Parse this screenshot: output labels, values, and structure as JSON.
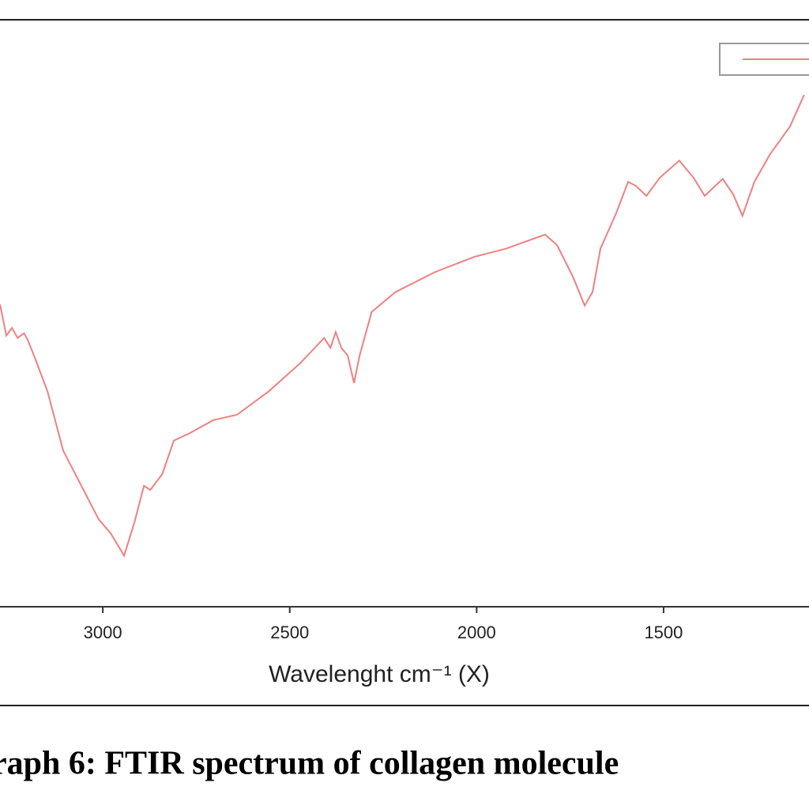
{
  "chart_data": {
    "type": "line",
    "caption": "raph 6: FTIR spectrum of collagen molecule",
    "x_label": "Wavelenght cm⁻¹ (X)",
    "xlim": [
      3275,
      1111
    ],
    "xticks": [
      3000,
      2500,
      2000,
      1500
    ],
    "ylim": [
      0,
      100
    ],
    "legend": "top-right",
    "series": [
      {
        "color": "#f08080",
        "x": [
          3275,
          3258,
          3243,
          3228,
          3211,
          3201,
          3180,
          3148,
          3106,
          3063,
          3011,
          2979,
          2943,
          2915,
          2890,
          2873,
          2841,
          2810,
          2767,
          2704,
          2641,
          2556,
          2472,
          2408,
          2391,
          2377,
          2362,
          2345,
          2328,
          2313,
          2281,
          2218,
          2112,
          2007,
          1922,
          1817,
          1785,
          1743,
          1711,
          1690,
          1669,
          1627,
          1595,
          1574,
          1546,
          1510,
          1458,
          1420,
          1390,
          1342,
          1314,
          1289,
          1257,
          1215,
          1162,
          1124
        ],
        "values": [
          51.5,
          46.2,
          47.5,
          45.8,
          46.6,
          45.5,
          42.1,
          36.7,
          26.6,
          21.3,
          14.9,
          12.5,
          8.7,
          14.5,
          20.6,
          19.9,
          22.6,
          28.3,
          29.6,
          31.8,
          32.7,
          36.7,
          41.5,
          45.8,
          44.1,
          46.8,
          44.1,
          42.8,
          38.1,
          42.8,
          50.2,
          53.6,
          57.0,
          59.6,
          61.0,
          63.4,
          61.6,
          56.3,
          51.3,
          53.6,
          61.0,
          67.0,
          72.4,
          71.7,
          70.0,
          73.1,
          76.0,
          73.1,
          70.0,
          72.9,
          70.3,
          66.6,
          72.4,
          77.1,
          81.8,
          87.2
        ]
      }
    ]
  }
}
